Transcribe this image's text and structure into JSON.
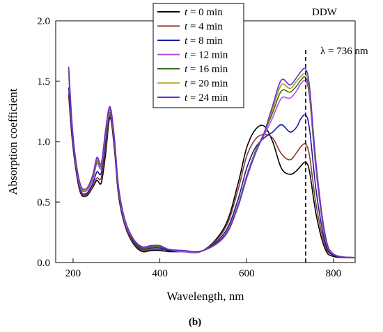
{
  "chart_data": {
    "type": "line",
    "title": "",
    "xlabel": "Wavelength, nm",
    "ylabel": "Absorption coefficient",
    "xlim": [
      160,
      850
    ],
    "ylim": [
      0,
      2.0
    ],
    "x_ticks": [
      200,
      400,
      600,
      800
    ],
    "y_ticks": [
      0.0,
      0.5,
      1.0,
      1.5,
      2.0
    ],
    "x_tick_labels": [
      "200",
      "400",
      "600",
      "800"
    ],
    "y_tick_labels": [
      "0.0",
      "0.5",
      "1.0",
      "1.5",
      "2.0"
    ],
    "grid": false,
    "legend_position": "top-center",
    "annotations": {
      "corner": "DDW",
      "wavelength_marker": "λ = 736 nm",
      "marker_x": 736,
      "panel_label": "(b)"
    },
    "x": [
      190,
      200,
      215,
      230,
      245,
      255,
      265,
      275,
      285,
      295,
      305,
      320,
      340,
      360,
      380,
      400,
      420,
      450,
      500,
      550,
      580,
      600,
      620,
      640,
      660,
      680,
      700,
      715,
      725,
      736,
      745,
      760,
      780,
      800,
      850
    ],
    "series": [
      {
        "name": "t = 0 min",
        "color": "#000000",
        "values": [
          1.38,
          0.95,
          0.6,
          0.55,
          0.62,
          0.68,
          0.66,
          0.9,
          1.2,
          0.95,
          0.55,
          0.3,
          0.15,
          0.09,
          0.1,
          0.1,
          0.09,
          0.09,
          0.1,
          0.3,
          0.65,
          0.95,
          1.1,
          1.13,
          1.0,
          0.78,
          0.73,
          0.76,
          0.8,
          0.83,
          0.75,
          0.4,
          0.12,
          0.05,
          0.04
        ]
      },
      {
        "name": "t = 4 min",
        "color": "#8B3A2A",
        "values": [
          1.4,
          0.96,
          0.61,
          0.56,
          0.63,
          0.7,
          0.7,
          0.95,
          1.22,
          0.97,
          0.57,
          0.31,
          0.16,
          0.1,
          0.11,
          0.11,
          0.1,
          0.09,
          0.1,
          0.28,
          0.6,
          0.88,
          1.02,
          1.06,
          1.03,
          0.9,
          0.85,
          0.91,
          0.96,
          0.98,
          0.88,
          0.48,
          0.15,
          0.06,
          0.04
        ]
      },
      {
        "name": "t = 8 min",
        "color": "#1A1AA6",
        "values": [
          1.45,
          0.98,
          0.62,
          0.57,
          0.65,
          0.75,
          0.74,
          1.0,
          1.24,
          0.99,
          0.58,
          0.32,
          0.17,
          0.11,
          0.12,
          0.12,
          0.1,
          0.09,
          0.1,
          0.25,
          0.52,
          0.78,
          0.95,
          1.03,
          1.08,
          1.14,
          1.08,
          1.12,
          1.19,
          1.22,
          1.1,
          0.6,
          0.18,
          0.06,
          0.04
        ]
      },
      {
        "name": "t = 12 min",
        "color": "#B04FE0",
        "values": [
          1.55,
          1.02,
          0.64,
          0.59,
          0.68,
          0.82,
          0.78,
          1.05,
          1.26,
          1.01,
          0.6,
          0.33,
          0.18,
          0.12,
          0.13,
          0.13,
          0.11,
          0.09,
          0.1,
          0.23,
          0.48,
          0.72,
          0.92,
          1.05,
          1.2,
          1.36,
          1.36,
          1.42,
          1.48,
          1.5,
          1.36,
          0.76,
          0.22,
          0.07,
          0.04
        ]
      },
      {
        "name": "t = 16 min",
        "color": "#3A6A1A",
        "values": [
          1.58,
          1.03,
          0.65,
          0.6,
          0.7,
          0.84,
          0.8,
          1.07,
          1.27,
          1.02,
          0.61,
          0.34,
          0.18,
          0.12,
          0.13,
          0.13,
          0.11,
          0.1,
          0.1,
          0.23,
          0.48,
          0.71,
          0.92,
          1.07,
          1.24,
          1.42,
          1.41,
          1.46,
          1.51,
          1.53,
          1.39,
          0.78,
          0.23,
          0.07,
          0.04
        ]
      },
      {
        "name": "t = 20 min",
        "color": "#A6A01A",
        "values": [
          1.6,
          1.04,
          0.66,
          0.6,
          0.71,
          0.86,
          0.81,
          1.08,
          1.28,
          1.03,
          0.61,
          0.34,
          0.19,
          0.13,
          0.14,
          0.14,
          0.11,
          0.1,
          0.1,
          0.22,
          0.47,
          0.7,
          0.91,
          1.07,
          1.27,
          1.47,
          1.44,
          1.5,
          1.54,
          1.56,
          1.42,
          0.8,
          0.24,
          0.07,
          0.04
        ]
      },
      {
        "name": "t = 24 min",
        "color": "#6A2BD6",
        "values": [
          1.62,
          1.05,
          0.67,
          0.61,
          0.72,
          0.87,
          0.82,
          1.1,
          1.29,
          1.04,
          0.62,
          0.35,
          0.19,
          0.13,
          0.14,
          0.14,
          0.11,
          0.1,
          0.1,
          0.22,
          0.46,
          0.7,
          0.9,
          1.07,
          1.3,
          1.51,
          1.47,
          1.53,
          1.58,
          1.6,
          1.45,
          0.82,
          0.25,
          0.07,
          0.04
        ]
      }
    ]
  }
}
